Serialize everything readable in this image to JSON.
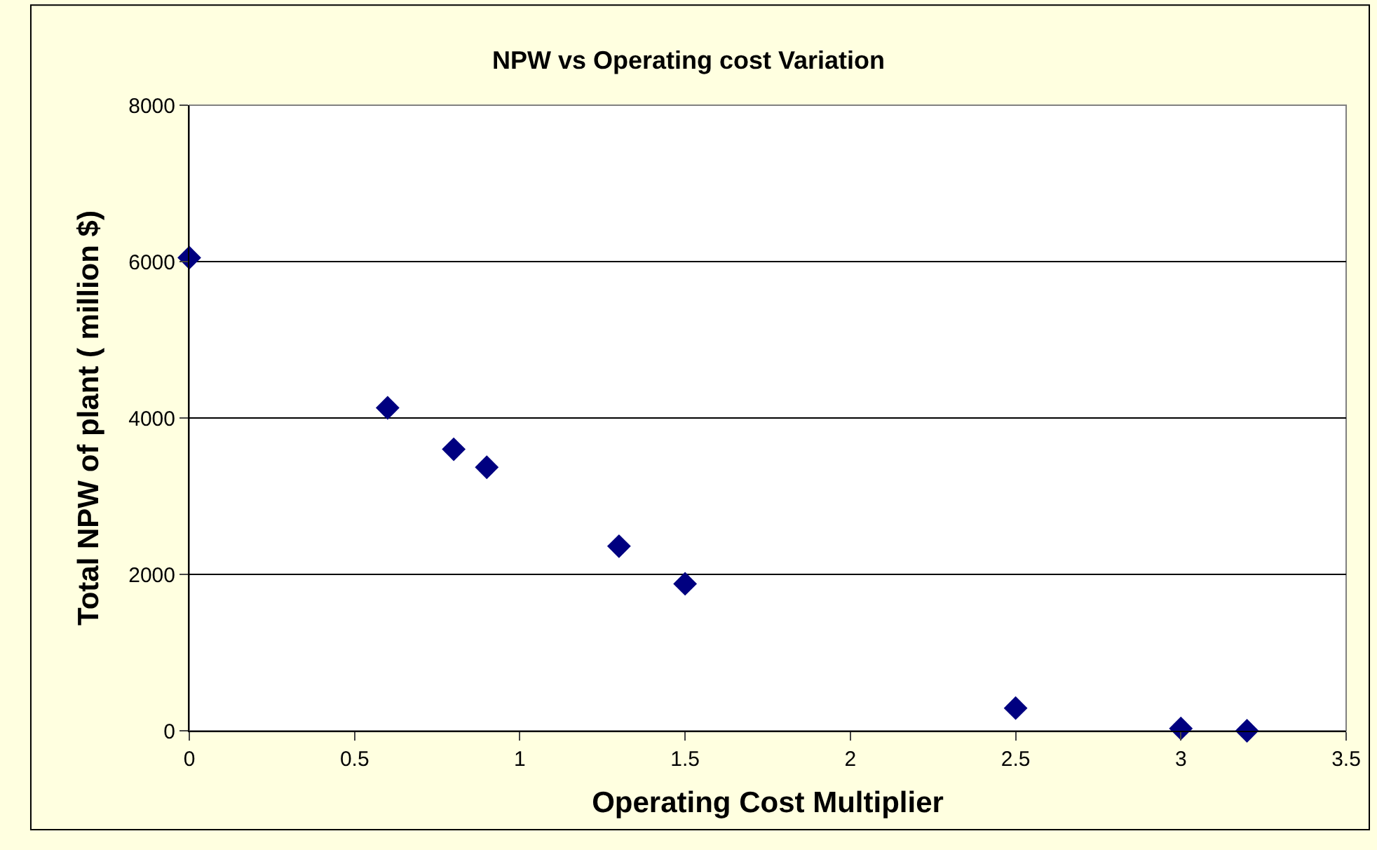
{
  "chart_data": {
    "type": "scatter",
    "title": "NPW vs Operating cost Variation",
    "xlabel": "Operating Cost Multiplier",
    "ylabel": "Total NPW of plant ( million $)",
    "x": [
      0,
      0.6,
      0.8,
      0.9,
      1.3,
      1.5,
      2.5,
      3.0,
      3.2
    ],
    "series": [
      {
        "color": "#000080",
        "values": [
          6050,
          4130,
          3600,
          3370,
          2360,
          1880,
          290,
          30,
          0
        ]
      }
    ],
    "xlim": [
      0,
      3.5
    ],
    "xticks": [
      0,
      0.5,
      1,
      1.5,
      2,
      2.5,
      3,
      3.5
    ],
    "ylim": [
      0,
      8000
    ],
    "yticks": [
      0,
      2000,
      4000,
      6000,
      8000
    ],
    "grid": "y",
    "marker": "diamond"
  }
}
